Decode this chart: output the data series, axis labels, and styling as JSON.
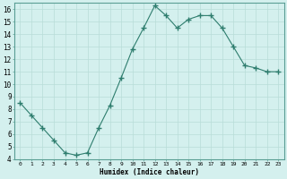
{
  "x": [
    0,
    1,
    2,
    3,
    4,
    5,
    6,
    7,
    8,
    9,
    10,
    11,
    12,
    13,
    14,
    15,
    16,
    17,
    18,
    19,
    20,
    21,
    22,
    23
  ],
  "y": [
    8.5,
    7.5,
    6.5,
    5.5,
    4.5,
    4.3,
    4.5,
    6.5,
    8.3,
    10.5,
    12.8,
    14.5,
    16.3,
    15.5,
    14.5,
    15.2,
    15.5,
    15.5,
    14.5,
    13.0,
    11.5,
    11.3,
    11.0,
    11.0
  ],
  "xlabel": "Humidex (Indice chaleur)",
  "ylim": [
    4,
    16.5
  ],
  "xlim": [
    -0.5,
    23.5
  ],
  "yticks": [
    4,
    5,
    6,
    7,
    8,
    9,
    10,
    11,
    12,
    13,
    14,
    15,
    16
  ],
  "xticks": [
    0,
    1,
    2,
    3,
    4,
    5,
    6,
    7,
    8,
    9,
    10,
    11,
    12,
    13,
    14,
    15,
    16,
    17,
    18,
    19,
    20,
    21,
    22,
    23
  ],
  "xtick_labels": [
    "0",
    "1",
    "2",
    "3",
    "4",
    "5",
    "6",
    "7",
    "8",
    "9",
    "10",
    "11",
    "12",
    "13",
    "14",
    "15",
    "16",
    "17",
    "18",
    "19",
    "20",
    "21",
    "22",
    "23"
  ],
  "line_color": "#2e7d6e",
  "marker": "+",
  "marker_size": 4,
  "bg_color": "#d4f0ee",
  "grid_color": "#b8ddd8",
  "spine_color": "#5a9e94"
}
